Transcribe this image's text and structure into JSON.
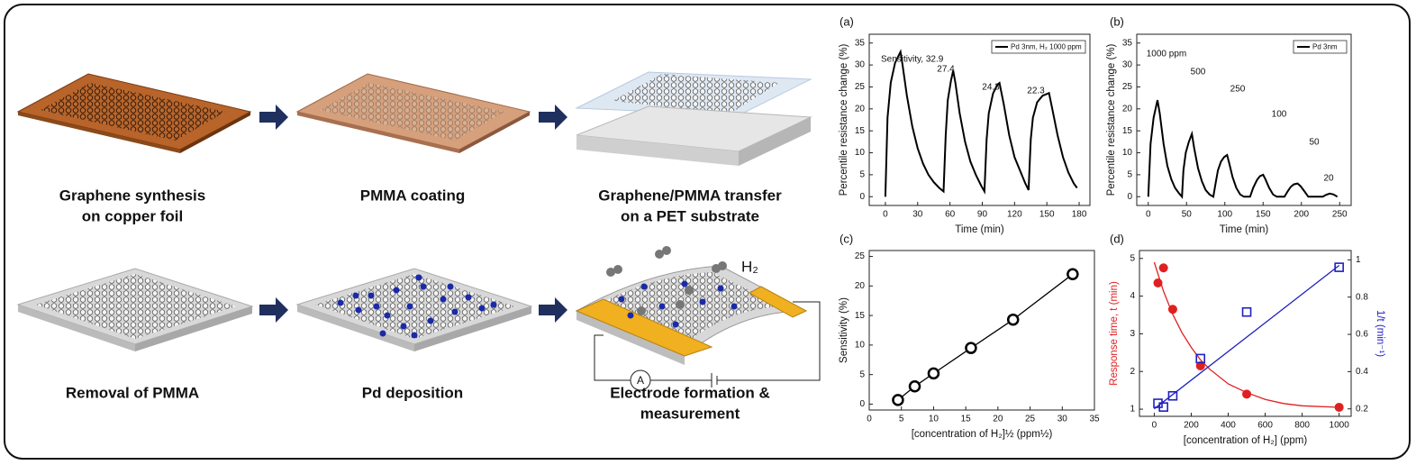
{
  "process": {
    "steps": [
      {
        "lines": [
          "Graphene synthesis",
          "on copper foil"
        ]
      },
      {
        "lines": [
          "PMMA coating"
        ]
      },
      {
        "lines": [
          "Graphene/PMMA transfer",
          "on a PET substrate"
        ]
      },
      {
        "lines": [
          "Removal of PMMA"
        ]
      },
      {
        "lines": [
          "Pd deposition"
        ]
      },
      {
        "lines": [
          "Electrode formation &",
          "measurement"
        ]
      }
    ],
    "gas_label": "H₂",
    "ammeter": "A"
  },
  "chart_data": [
    {
      "type": "line",
      "label": "(a)",
      "xlabel": "Time (min)",
      "ylabel": "Percentile resistance change (%)",
      "xlim": [
        -15,
        190
      ],
      "ylim": [
        -2,
        37
      ],
      "xticks": [
        0,
        30,
        60,
        90,
        120,
        150,
        180
      ],
      "yticks": [
        0,
        5,
        10,
        15,
        20,
        25,
        30,
        35
      ],
      "legend": "upper right",
      "annotations": [
        "Sensitivity, 32.9",
        "27.4",
        "24.3",
        "22.3"
      ],
      "series": [
        {
          "name": "Pd 3nm, H₂ 1000 ppm",
          "color": "#000000",
          "line": true,
          "x": [
            0,
            2,
            5,
            9,
            14,
            16,
            20,
            25,
            30,
            35,
            40,
            45,
            50,
            54,
            56,
            58,
            61,
            63,
            65,
            69,
            74,
            79,
            84,
            89,
            92,
            94,
            96,
            100,
            104,
            106,
            110,
            115,
            120,
            125,
            130,
            133,
            135,
            137,
            141,
            146,
            152,
            155,
            160,
            165,
            170,
            175,
            178
          ],
          "values": [
            0,
            18,
            26,
            30.5,
            33,
            30,
            23,
            16,
            11,
            7.5,
            5,
            3.3,
            2,
            1.2,
            14,
            22,
            26.5,
            28.7,
            26,
            19,
            12.5,
            8,
            5,
            2.5,
            1.2,
            13,
            19,
            23.5,
            25.5,
            25.9,
            21,
            14,
            9,
            6,
            3,
            1.5,
            13,
            18,
            21.5,
            23,
            23.6,
            20,
            14,
            9,
            5.5,
            3,
            2
          ]
        }
      ]
    },
    {
      "type": "line",
      "label": "(b)",
      "xlabel": "Time (min)",
      "ylabel": "Percentile resistance change (%)",
      "xlim": [
        -15,
        265
      ],
      "ylim": [
        -2,
        37
      ],
      "xticks": [
        0,
        50,
        100,
        150,
        200,
        250
      ],
      "yticks": [
        0,
        5,
        10,
        15,
        20,
        25,
        30,
        35
      ],
      "legend": "upper right",
      "annotations": [
        "1000 ppm",
        "500",
        "250",
        "100",
        "50",
        "20"
      ],
      "series": [
        {
          "name": "Pd 3nm",
          "color": "#000000",
          "line": true,
          "x": [
            0,
            3,
            7,
            12,
            15,
            20,
            25,
            30,
            35,
            40,
            44,
            46,
            49,
            53,
            57,
            60,
            65,
            70,
            75,
            80,
            85,
            88,
            91,
            95,
            99,
            103,
            106,
            110,
            115,
            120,
            125,
            133,
            137,
            142,
            146,
            150,
            153,
            158,
            163,
            168,
            178,
            182,
            186,
            190,
            195,
            199,
            204,
            209,
            228,
            232,
            237,
            242,
            247
          ],
          "values": [
            0,
            12,
            18,
            22,
            19,
            12,
            7,
            4,
            2,
            0.8,
            0,
            6,
            10,
            12.5,
            14.3,
            11,
            6.5,
            3.5,
            1.5,
            0.5,
            0,
            3,
            6,
            8,
            9,
            9.5,
            7.5,
            4.5,
            2,
            0.5,
            0,
            0,
            2,
            3.8,
            4.7,
            5,
            4,
            2,
            0.5,
            0,
            0,
            1.2,
            2.2,
            2.8,
            3,
            2.4,
            1.2,
            0,
            0,
            0.4,
            0.7,
            0.5,
            0
          ]
        }
      ]
    },
    {
      "type": "scatter",
      "label": "(c)",
      "xlabel": "[concentration of H₂]½ (ppm½)",
      "ylabel": "Sensitivity (%)",
      "xlim": [
        0,
        35
      ],
      "ylim": [
        -1,
        26
      ],
      "xticks": [
        0,
        5,
        10,
        15,
        20,
        25,
        30,
        35
      ],
      "yticks": [
        0,
        5,
        10,
        15,
        20,
        25
      ],
      "series": [
        {
          "color": "#000000",
          "line": true,
          "marker": "circle-open",
          "x": [
            4.47,
            7.07,
            10,
            15.81,
            22.36,
            31.62
          ],
          "values": [
            0.7,
            3,
            5.2,
            9.5,
            14.3,
            22
          ]
        }
      ]
    },
    {
      "type": "scatter",
      "label": "(d)",
      "xlabel": "[concentration of H₂] (ppm)",
      "ylabel": "Response time, t (min)",
      "y2label": "1/t (min⁻¹)",
      "ylabel_color": "#e02020",
      "y2label_color": "#2020c0",
      "xlim": [
        -80,
        1065
      ],
      "ylim": [
        0.81,
        5.21
      ],
      "y2lim": [
        0.16,
        1.05
      ],
      "xticks": [
        0,
        200,
        400,
        600,
        800,
        1000
      ],
      "yticks": [
        1,
        2,
        3,
        4,
        5
      ],
      "y2ticks": [
        0.2,
        0.4,
        0.6,
        0.8,
        1.0
      ],
      "series": [
        {
          "color": "#e02020",
          "line": false,
          "marker": "circle",
          "x": [
            20,
            50,
            100,
            250,
            500,
            1000
          ],
          "values": [
            4.35,
            4.75,
            3.65,
            2.15,
            1.4,
            1.05
          ]
        },
        {
          "color": "#e02020",
          "line": true,
          "x": [
            0,
            50,
            100,
            150,
            200,
            250,
            300,
            400,
            500,
            600,
            700,
            800,
            1000
          ],
          "values": [
            4.9,
            4.13,
            3.52,
            3.03,
            2.64,
            2.31,
            2.06,
            1.67,
            1.44,
            1.26,
            1.15,
            1.09,
            1.05
          ]
        },
        {
          "color": "#2020c0",
          "line": false,
          "marker": "square-open",
          "axis": "y2",
          "x": [
            20,
            50,
            100,
            250,
            500,
            1000
          ],
          "values": [
            0.23,
            0.21,
            0.27,
            0.47,
            0.72,
            0.96
          ]
        },
        {
          "color": "#2020c0",
          "line": true,
          "axis": "y2",
          "x": [
            0,
            1000
          ],
          "values": [
            0.2,
            0.97
          ]
        }
      ]
    }
  ]
}
